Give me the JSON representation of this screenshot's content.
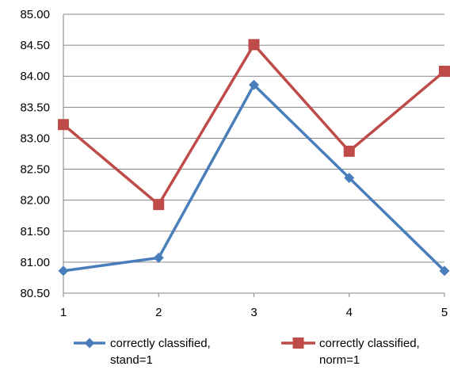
{
  "chart_data": {
    "type": "line",
    "title": "",
    "xlabel": "",
    "ylabel": "",
    "categories": [
      "1",
      "2",
      "3",
      "4",
      "5"
    ],
    "ylim": [
      80.5,
      85.0
    ],
    "ytick_labels": [
      "80.50",
      "81.00",
      "81.50",
      "82.00",
      "82.50",
      "83.00",
      "83.50",
      "84.00",
      "84.50",
      "85.00"
    ],
    "grid": "horizontal",
    "legend_position": "bottom",
    "series": [
      {
        "name_line1": "correctly classified,",
        "name_line2": "stand=1",
        "color": "#4a7ebb",
        "marker": "diamond",
        "values": [
          80.86,
          81.07,
          83.86,
          82.36,
          80.86
        ]
      },
      {
        "name_line1": "correctly classified,",
        "name_line2": "norm=1",
        "color": "#be4b48",
        "marker": "square",
        "values": [
          83.22,
          81.93,
          84.51,
          82.79,
          84.08
        ]
      }
    ]
  }
}
